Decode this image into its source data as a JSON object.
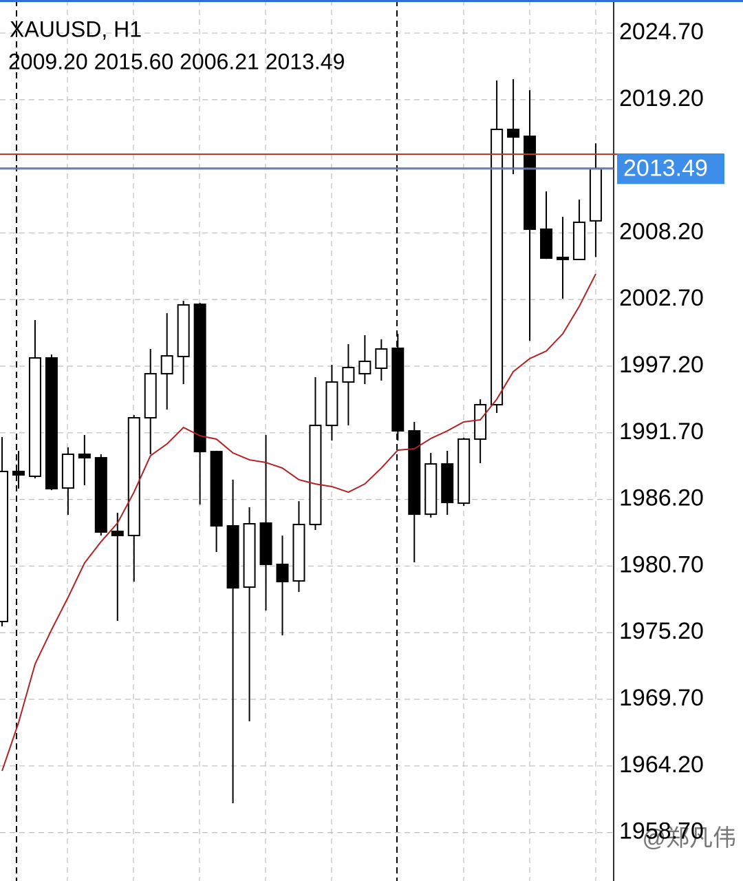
{
  "chart_data": {
    "type": "candlestick",
    "title": "XAUUSD, H1",
    "subtitle": "2009.20 2015.60 2006.21 2013.49",
    "watermark": "@郑凡伟",
    "open": [
      1976.12,
      1988.51,
      1988.11,
      1997.88,
      1987.14,
      1989.93,
      1989.64,
      1983.56,
      1983.22,
      1992.94,
      1996.58,
      1998.0,
      2002.31,
      1990.15,
      1984.02,
      1978.96,
      1984.25,
      1980.84,
      1979.47,
      1984.13,
      1992.31,
      1995.89,
      1996.58,
      1997.03,
      1998.68,
      1991.86,
      1984.98,
      1989.13,
      1985.89,
      1991.18,
      1994.02,
      2016.75,
      2016.18,
      2008.51,
      2006.18,
      2006.01,
      2009.2
    ],
    "high": [
      1991.35,
      1990.21,
      2001.01,
      1998.17,
      1990.5,
      1991.52,
      1989.93,
      1985.1,
      1993.17,
      1998.62,
      2001.58,
      2002.6,
      2002.43,
      1990.21,
      1987.83,
      1985.55,
      1991.52,
      1983.22,
      1986.06,
      1996.29,
      1997.31,
      1999.02,
      1999.76,
      1999.42,
      1999.87,
      1992.6,
      1990.04,
      1990.21,
      1991.29,
      1994.47,
      2020.78,
      2020.89,
      2019.98,
      2011.63,
      2009.53,
      2010.95,
      2015.6
    ],
    "low": [
      1975.72,
      1987.09,
      1987.94,
      1986.97,
      1984.93,
      1987.37,
      1983.22,
      1976.18,
      1979.42,
      1989.93,
      1993.62,
      1995.72,
      1985.78,
      1981.86,
      1961.12,
      1967.88,
      1977.03,
      1974.98,
      1978.56,
      1983.68,
      1991.06,
      1992.31,
      1995.72,
      1996.01,
      1991.06,
      1981.01,
      1984.7,
      1984.93,
      1985.67,
      1989.19,
      1993.34,
      2013.05,
      1999.3,
      2006.06,
      2002.77,
      2005.95,
      2006.21
    ],
    "close": [
      1988.51,
      1988.22,
      1997.88,
      1987.09,
      1989.93,
      1989.64,
      1983.51,
      1983.22,
      1992.94,
      1996.58,
      1998.05,
      2002.26,
      1990.15,
      1984.02,
      1978.9,
      1984.19,
      1980.84,
      1979.42,
      1984.13,
      1992.31,
      1995.89,
      1997.09,
      1997.6,
      1998.62,
      1991.86,
      1984.98,
      1989.13,
      1985.95,
      1991.18,
      1994.02,
      2016.75,
      2016.12,
      2008.51,
      2006.12,
      2006.01,
      2009.08,
      2013.49
    ],
    "ma": [
      1963.79,
      1967.77,
      1972.6,
      1975.44,
      1978.11,
      1980.95,
      1982.71,
      1984.25,
      1986.8,
      1989.81,
      1990.78,
      1992.14,
      1991.46,
      1991.18,
      1990.04,
      1989.47,
      1989.25,
      1988.79,
      1987.83,
      1987.48,
      1987.26,
      1986.8,
      1987.48,
      1988.79,
      1990.27,
      1990.38,
      1991.23,
      1991.86,
      1992.6,
      1992.77,
      1994.47,
      1996.75,
      1997.83,
      1998.45,
      1999.87,
      2002.14,
      2004.81
    ],
    "ma_color": "#b22222",
    "bull_color": "#ffffff",
    "bear_color": "#000000",
    "current_price": 2013.49,
    "price_color": "#3d8ee8",
    "ask_price": 2014.7,
    "ask_color": "#c0392b",
    "ylim": [
      1954.7,
      2027.43
    ],
    "yticks": [
      {
        "value": 2024.7,
        "label": "2024.70"
      },
      {
        "value": 2019.2,
        "label": "2019.20"
      },
      {
        "value": 2008.2,
        "label": "2008.20"
      },
      {
        "value": 2002.7,
        "label": "2002.70"
      },
      {
        "value": 1997.2,
        "label": "1997.20"
      },
      {
        "value": 1991.7,
        "label": "1991.70"
      },
      {
        "value": 1986.2,
        "label": "1986.20"
      },
      {
        "value": 1980.7,
        "label": "1980.70"
      },
      {
        "value": 1975.2,
        "label": "1975.20"
      },
      {
        "value": 1969.7,
        "label": "1969.70"
      },
      {
        "value": 1964.2,
        "label": "1964.20"
      },
      {
        "value": 1958.7,
        "label": "1958.70"
      }
    ],
    "grid": true
  }
}
